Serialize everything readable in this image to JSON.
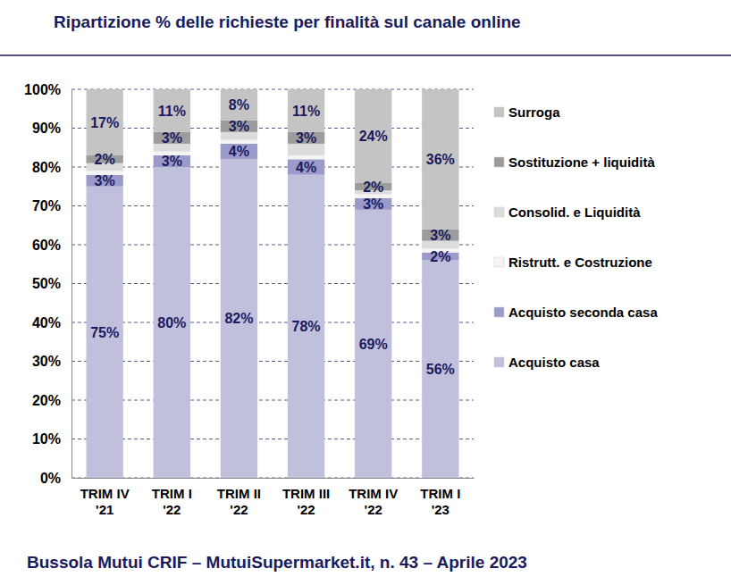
{
  "chart_data": {
    "type": "bar",
    "stacked": true,
    "data_labels": true,
    "grid": true,
    "legend": "right",
    "title": "Ripartizione % delle richieste per finalità sul canale online",
    "caption": "Bussola Mutui CRIF – MutuiSupermarket.it, n. 43 – Aprile 2023",
    "categories": [
      "TRIM IV '21",
      "TRIM I '22",
      "TRIM II '22",
      "TRIM III '22",
      "TRIM IV '22",
      "TRIM I '23"
    ],
    "ylim": [
      0,
      100
    ],
    "yticks": [
      {
        "value": 0,
        "label": "0%"
      },
      {
        "value": 10,
        "label": "10%"
      },
      {
        "value": 20,
        "label": "20%"
      },
      {
        "value": 30,
        "label": "30%"
      },
      {
        "value": 40,
        "label": "40%"
      },
      {
        "value": 50,
        "label": "50%"
      },
      {
        "value": 60,
        "label": "60%"
      },
      {
        "value": 70,
        "label": "70%"
      },
      {
        "value": 80,
        "label": "80%"
      },
      {
        "value": 90,
        "label": "90%"
      },
      {
        "value": 100,
        "label": "100%"
      }
    ],
    "series": [
      {
        "name": "Acquisto casa",
        "color": "#c0c0dc",
        "values": [
          75,
          80,
          82,
          78,
          69,
          56
        ],
        "value_labels": [
          "75%",
          "80%",
          "82%",
          "78%",
          "69%",
          "56%"
        ]
      },
      {
        "name": "Acquisto seconda casa",
        "color": "#9a9acb",
        "values": [
          3,
          3,
          4,
          4,
          3,
          2
        ],
        "value_labels": [
          "3%",
          "3%",
          "4%",
          "4%",
          "3%",
          "2%"
        ]
      },
      {
        "name": "Ristrutt. e Costruzione",
        "color": "#f4f4f4",
        "values": [
          1,
          1,
          1,
          1,
          1,
          1
        ],
        "value_labels": [
          null,
          null,
          null,
          null,
          null,
          null
        ]
      },
      {
        "name": "Consolid. e Liquidità",
        "color": "#dcdcdc",
        "values": [
          2,
          2,
          2,
          3,
          1,
          2
        ],
        "value_labels": [
          null,
          null,
          null,
          null,
          null,
          null
        ]
      },
      {
        "name": "Sostituzione + liquidità",
        "color": "#9c9c9c",
        "values": [
          2,
          3,
          3,
          3,
          2,
          3
        ],
        "value_labels": [
          "2%",
          "3%",
          "3%",
          "3%",
          "2%",
          "3%"
        ]
      },
      {
        "name": "Surroga",
        "color": "#c4c4c4",
        "values": [
          17,
          11,
          8,
          11,
          24,
          36
        ],
        "value_labels": [
          "17%",
          "11%",
          "8%",
          "11%",
          "24%",
          "36%"
        ]
      }
    ]
  }
}
